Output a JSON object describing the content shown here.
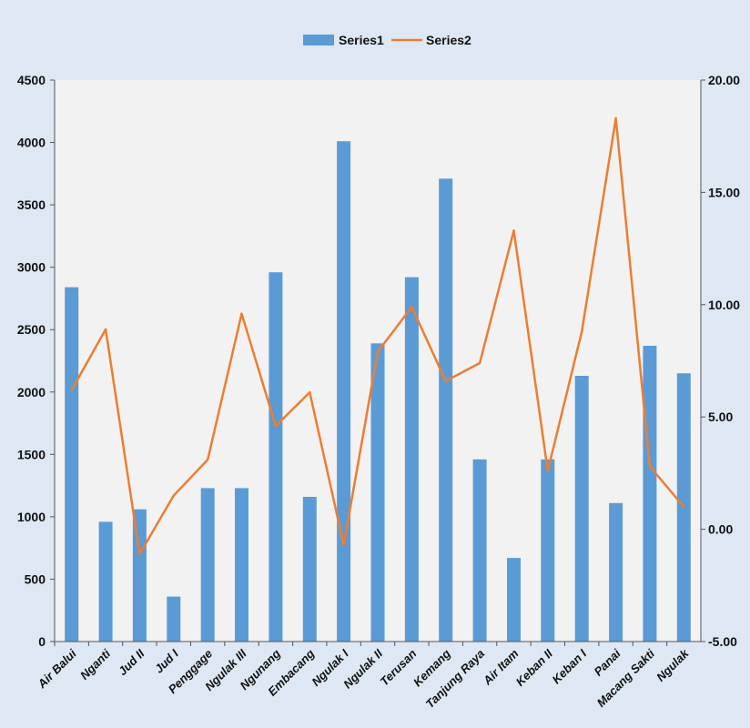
{
  "chart_data": {
    "type": "bar+line",
    "title": "",
    "categories": [
      "Air Balui",
      "Nganti",
      "Jud II",
      "Jud I",
      "Penggage",
      "Ngulak III",
      "Ngunang",
      "Embacang",
      "Ngulak I",
      "Ngulak II",
      "Terusan",
      "Kemang",
      "Tanjung Raya",
      "Air Itam",
      "Keban II",
      "Keban I",
      "Panai",
      "Macang Sakti",
      "Ngulak"
    ],
    "series": [
      {
        "name": "Series1",
        "type": "bar",
        "axis": "left",
        "color": "#5b9bd5",
        "values": [
          2840,
          960,
          1060,
          360,
          1230,
          1230,
          2960,
          1160,
          4010,
          2390,
          2920,
          3710,
          1460,
          670,
          1460,
          2130,
          1110,
          2370,
          2150
        ]
      },
      {
        "name": "Series2",
        "type": "line",
        "axis": "right",
        "color": "#ed7d31",
        "values": [
          6.2,
          8.9,
          -1.1,
          1.5,
          3.1,
          9.6,
          4.6,
          6.1,
          -0.7,
          7.9,
          9.9,
          6.6,
          7.4,
          13.3,
          2.6,
          8.8,
          18.3,
          2.8,
          1.0
        ]
      }
    ],
    "y_left": {
      "min": 0,
      "max": 4500,
      "ticks": [
        "0",
        "500",
        "1000",
        "1500",
        "2000",
        "2500",
        "3000",
        "3500",
        "4000",
        "4500"
      ]
    },
    "y_right": {
      "min": -5,
      "max": 20,
      "ticks": [
        "-5.00",
        "0.00",
        "5.00",
        "10.00",
        "15.00",
        "20.00"
      ]
    },
    "legend": {
      "position": "top",
      "items": [
        "Series1",
        "Series2"
      ]
    },
    "grid": false,
    "colors": {
      "chart_bg": "#dde8f4",
      "plot_bg": "#f2f2f2",
      "axis": "#555555"
    }
  }
}
